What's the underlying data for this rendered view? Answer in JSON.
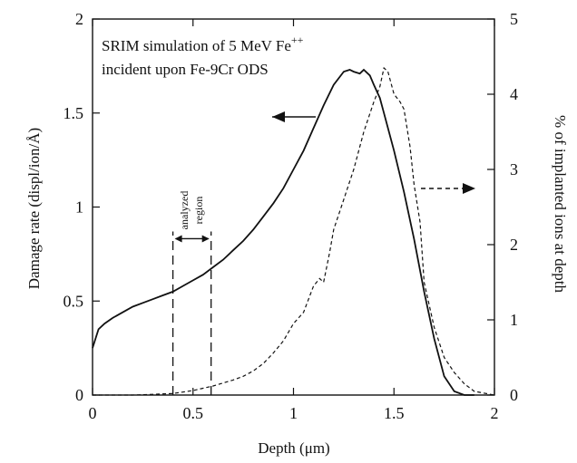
{
  "chart_data": {
    "type": "line",
    "title_line1": "SRIM simulation of 5 MeV Fe",
    "title_superscript": "++",
    "title_line2": "incident upon Fe-9Cr ODS",
    "xlabel": "Depth (μm)",
    "ylabel_left": "Damage rate (displ/ion/Å)",
    "ylabel_right": "% of implanted ions at depth",
    "xlim": [
      0,
      2
    ],
    "ylim_left": [
      0,
      2
    ],
    "ylim_right": [
      0,
      5
    ],
    "x_ticks": [
      0,
      0.5,
      1,
      1.5,
      2
    ],
    "x_tick_labels": [
      "0",
      "0.5",
      "1",
      "1.5",
      "2"
    ],
    "y_left_ticks": [
      0,
      0.5,
      1,
      1.5,
      2
    ],
    "y_left_tick_labels": [
      "0",
      "0.5",
      "1",
      "1.5",
      "2"
    ],
    "y_right_ticks": [
      0,
      1,
      2,
      3,
      4,
      5
    ],
    "y_right_tick_labels": [
      "0",
      "1",
      "2",
      "3",
      "4",
      "5"
    ],
    "grid": false,
    "region": {
      "label_line1": "analyzed",
      "label_line2": "region",
      "x_start": 0.4,
      "x_end": 0.59,
      "y_top": 0.87
    },
    "series": [
      {
        "axis": "left",
        "style": "solid",
        "x": [
          0.0,
          0.03,
          0.06,
          0.1,
          0.15,
          0.2,
          0.25,
          0.3,
          0.35,
          0.4,
          0.45,
          0.5,
          0.55,
          0.6,
          0.65,
          0.7,
          0.75,
          0.8,
          0.85,
          0.9,
          0.95,
          1.0,
          1.05,
          1.1,
          1.15,
          1.2,
          1.25,
          1.28,
          1.3,
          1.33,
          1.35,
          1.38,
          1.4,
          1.43,
          1.45,
          1.5,
          1.55,
          1.6,
          1.65,
          1.7,
          1.75,
          1.8,
          1.85,
          1.9
        ],
        "values": [
          0.25,
          0.35,
          0.38,
          0.41,
          0.44,
          0.47,
          0.49,
          0.51,
          0.53,
          0.55,
          0.58,
          0.61,
          0.64,
          0.68,
          0.72,
          0.77,
          0.82,
          0.88,
          0.95,
          1.02,
          1.1,
          1.2,
          1.3,
          1.42,
          1.54,
          1.65,
          1.72,
          1.73,
          1.72,
          1.71,
          1.73,
          1.7,
          1.65,
          1.58,
          1.5,
          1.3,
          1.08,
          0.83,
          0.55,
          0.3,
          0.1,
          0.02,
          0.0,
          0.0
        ]
      },
      {
        "axis": "right",
        "style": "dashed",
        "x": [
          0.0,
          0.2,
          0.3,
          0.4,
          0.45,
          0.5,
          0.55,
          0.6,
          0.65,
          0.7,
          0.75,
          0.8,
          0.85,
          0.9,
          0.95,
          1.0,
          1.05,
          1.1,
          1.13,
          1.15,
          1.18,
          1.2,
          1.25,
          1.3,
          1.35,
          1.4,
          1.43,
          1.45,
          1.47,
          1.5,
          1.53,
          1.55,
          1.58,
          1.6,
          1.63,
          1.65,
          1.7,
          1.75,
          1.8,
          1.85,
          1.9,
          2.0
        ],
        "values": [
          0.0,
          0.0,
          0.01,
          0.02,
          0.04,
          0.06,
          0.09,
          0.12,
          0.16,
          0.2,
          0.25,
          0.32,
          0.42,
          0.56,
          0.72,
          0.95,
          1.1,
          1.45,
          1.55,
          1.5,
          1.9,
          2.2,
          2.6,
          3.0,
          3.5,
          3.9,
          4.1,
          4.35,
          4.3,
          4.0,
          3.9,
          3.8,
          3.3,
          2.8,
          2.3,
          1.5,
          0.9,
          0.5,
          0.3,
          0.15,
          0.05,
          0.0
        ]
      }
    ]
  }
}
